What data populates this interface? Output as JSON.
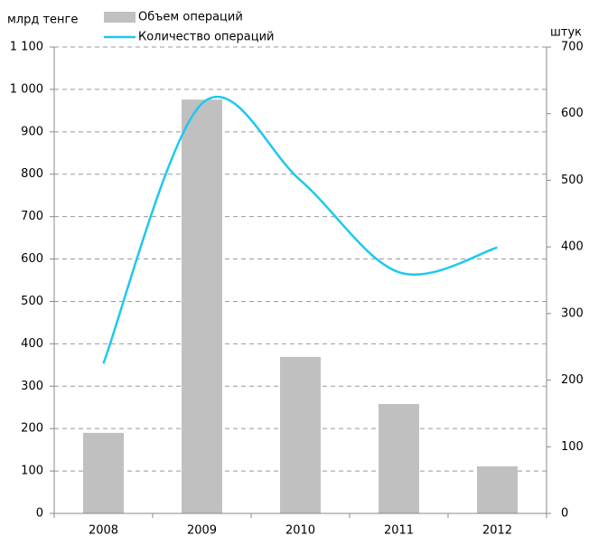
{
  "chart_data": {
    "type": "bar-line",
    "y_label": "млрд тенге",
    "y2_label": "штук",
    "categories": [
      "2008",
      "2009",
      "2010",
      "2011",
      "2012"
    ],
    "series": [
      {
        "name": "Объем операций",
        "type": "bar",
        "color": "#c0c0c0",
        "values": [
          190,
          976,
          369,
          258,
          111
        ]
      },
      {
        "name": "Количество операций",
        "type": "line",
        "color": "#1ec8f0",
        "axis": "y2",
        "values": [
          225,
          615,
          500,
          362,
          399
        ]
      }
    ],
    "ylim": [
      0,
      1100
    ],
    "yticks": [
      0,
      100,
      200,
      300,
      400,
      500,
      600,
      700,
      800,
      900,
      {
        "value": 1000,
        "label": "1 000"
      },
      {
        "value": 1100,
        "label": "1 100"
      }
    ],
    "y2lim": [
      0,
      700
    ],
    "y2ticks": [
      0,
      100,
      200,
      300,
      400,
      500,
      600,
      700
    ],
    "grid": true,
    "legend": "top"
  }
}
